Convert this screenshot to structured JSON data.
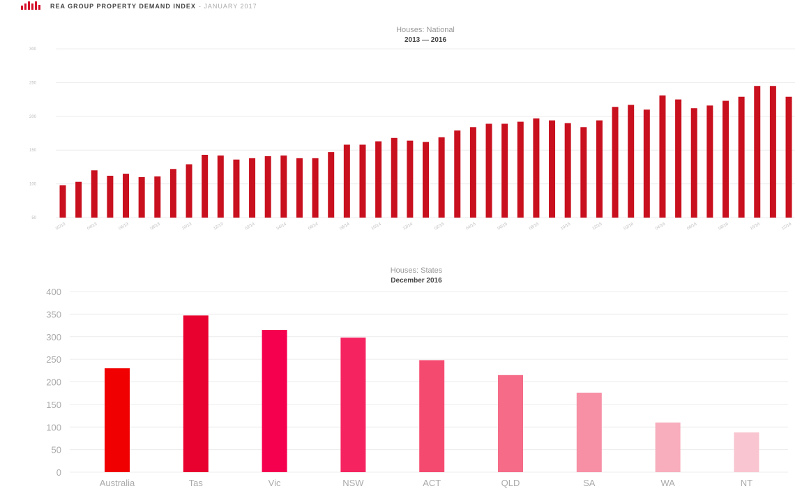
{
  "header": {
    "title": "REA GROUP PROPERTY DEMAND INDEX",
    "subtitle": "- JANUARY 2017",
    "logo_icon": "bar-chart-logo-icon",
    "brand_color": "#d4102a"
  },
  "chart_data": [
    {
      "type": "bar",
      "title": "Houses: National",
      "subtitle": "2013 — 2016",
      "ylim": [
        50,
        300
      ],
      "yticks": [
        "50",
        "100",
        "150",
        "200",
        "250",
        "300"
      ],
      "grid": true,
      "color": "#c8101e",
      "xtick_labels": [
        "02/13",
        "04/13",
        "06/13",
        "08/13",
        "10/13",
        "12/13",
        "02/14",
        "04/14",
        "06/14",
        "08/14",
        "10/14",
        "12/14",
        "02/15",
        "04/15",
        "06/15",
        "08/15",
        "10/15",
        "12/15",
        "02/16",
        "04/16",
        "06/16",
        "08/16",
        "10/16",
        "12/16"
      ],
      "values": [
        98,
        103,
        120,
        112,
        115,
        110,
        111,
        122,
        129,
        143,
        142,
        136,
        138,
        141,
        142,
        138,
        138,
        147,
        158,
        158,
        163,
        168,
        164,
        162,
        169,
        179,
        184,
        189,
        189,
        192,
        197,
        194,
        190,
        184,
        194,
        214,
        217,
        210,
        231,
        225,
        212,
        216,
        223,
        229,
        245,
        245,
        229
      ]
    },
    {
      "type": "bar",
      "title": "Houses: States",
      "subtitle": "December 2016",
      "ylim": [
        0,
        400
      ],
      "yticks": [
        "0",
        "50",
        "100",
        "150",
        "200",
        "250",
        "300",
        "350",
        "400"
      ],
      "grid": true,
      "categories": [
        "Australia",
        "Tas",
        "Vic",
        "NSW",
        "ACT",
        "QLD",
        "SA",
        "WA",
        "NT"
      ],
      "values": [
        230,
        347,
        315,
        298,
        248,
        215,
        176,
        110,
        88
      ],
      "colors": [
        "#f00000",
        "#e8002e",
        "#f5004f",
        "#f52460",
        "#f54a70",
        "#f56b88",
        "#f78fa5",
        "#f8aebd",
        "#f9c5d0"
      ]
    }
  ]
}
